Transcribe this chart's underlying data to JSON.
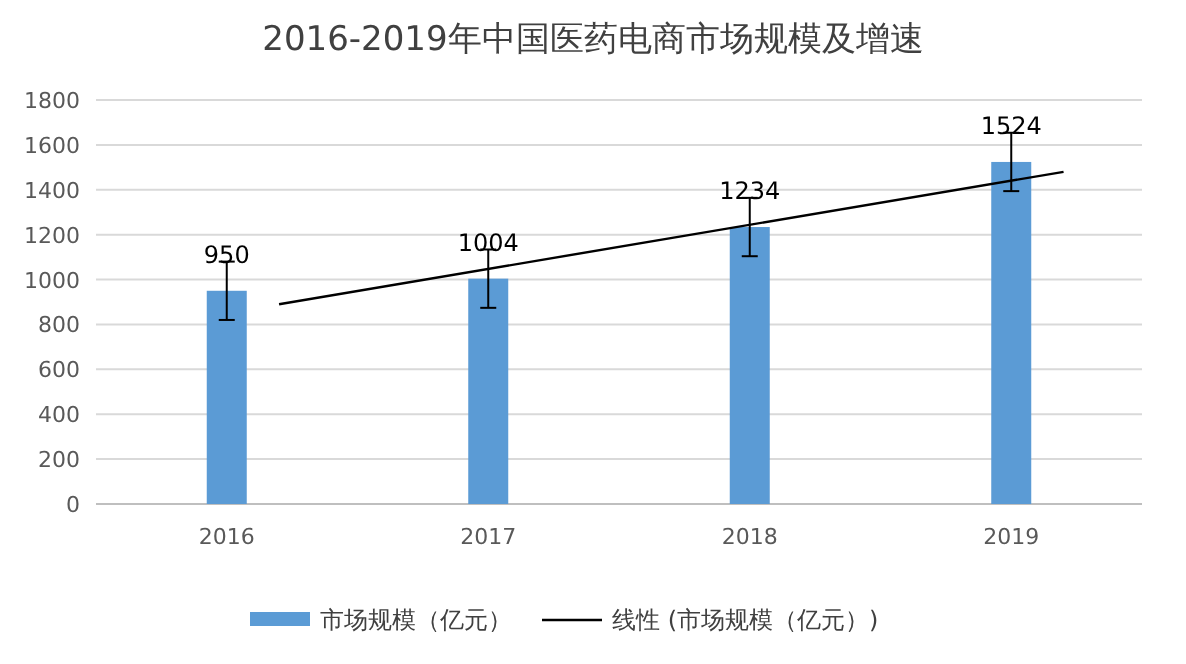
{
  "chart_data": {
    "type": "bar",
    "title": "2016-2019年中国医药电商市场规模及增速",
    "x": [
      2016,
      2017,
      2018,
      2019
    ],
    "xlim": [
      2015.5,
      2019.5
    ],
    "xticks": [
      2016,
      2017,
      2018,
      2019
    ],
    "ylim": [
      0,
      1800
    ],
    "yticks": [
      0,
      200,
      400,
      600,
      800,
      1000,
      1200,
      1400,
      1600,
      1800
    ],
    "grid": "y",
    "legend": "bottom",
    "series": [
      {
        "name": "市场规模（亿元）",
        "color": "#5b9bd5",
        "values": [
          950,
          1004,
          1234,
          1524
        ],
        "value_labels": [
          "950",
          "1004",
          "1234",
          "1524"
        ],
        "errors": [
          130,
          130,
          130,
          130
        ]
      },
      {
        "name": "线性 (市场规模（亿元）)",
        "type": "line",
        "color": "#000000",
        "x": [
          2016.2,
          2019.2
        ],
        "values": [
          890,
          1480
        ]
      }
    ]
  }
}
